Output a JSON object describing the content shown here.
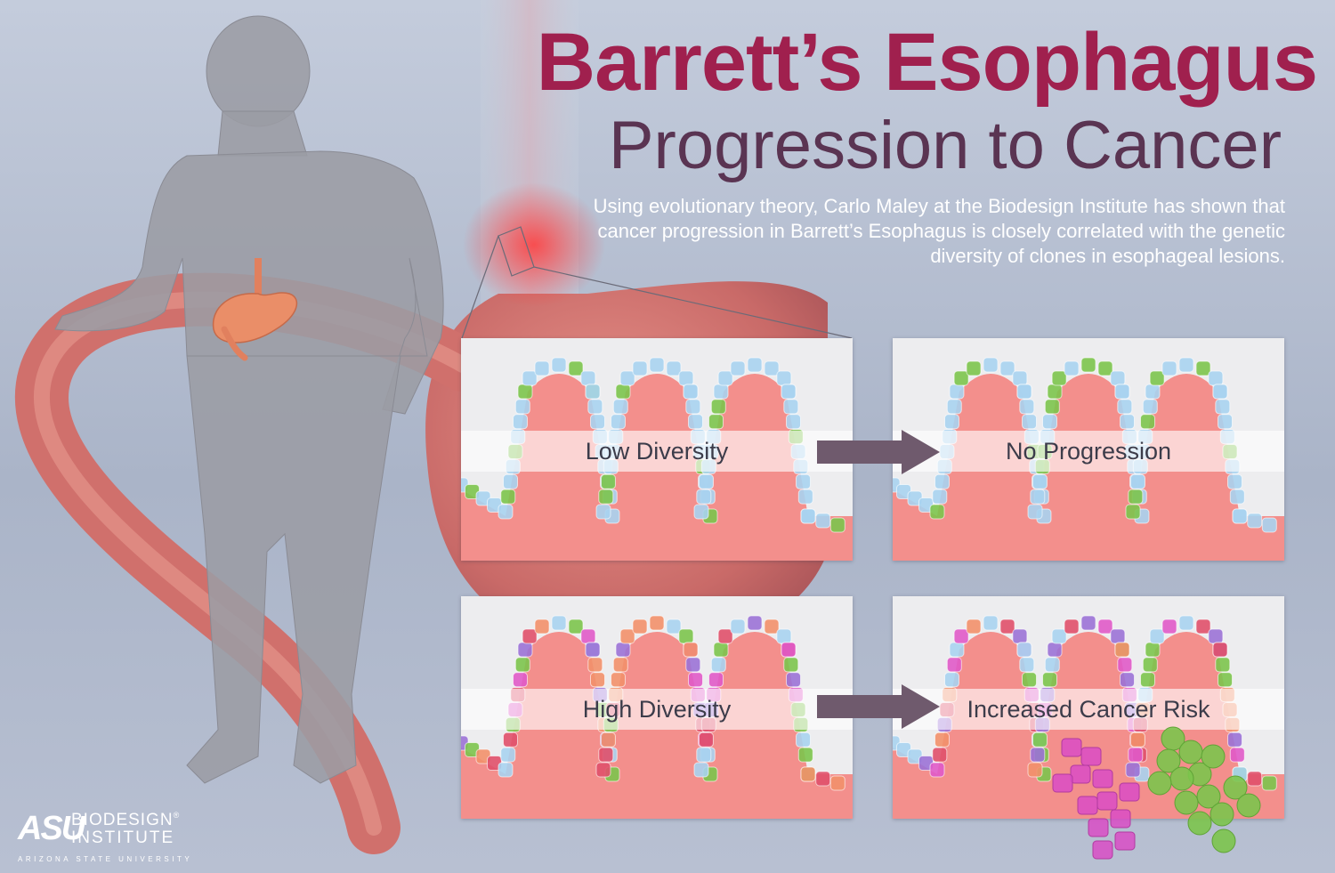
{
  "title": "Barrett’s Esophagus",
  "subtitle": "Progression to Cancer",
  "description": "Using evolutionary theory, Carlo Maley at the Biodesign Institute has shown that cancer progression in Barrett’s Esophagus is closely correlated with the genetic diversity of clones in esophageal lesions.",
  "panels": {
    "low_diversity": "Low Diversity",
    "no_progression": "No Progression",
    "high_diversity": "High Diversity",
    "increased_risk": "Increased Cancer Risk"
  },
  "logo": {
    "asu": "ASU",
    "biodesign": "BIODESIGN",
    "registered": "®",
    "institute": "INSTITUTE",
    "university": "ARIZONA STATE UNIVERSITY"
  },
  "colors": {
    "title": "#a0204e",
    "subtitle": "#5a3452",
    "tissue": "#f38f8c",
    "arrow": "#6f5a6d",
    "low_diversity_cells": [
      "#a9d3ef",
      "#a9d3ef",
      "#7cc44d",
      "#a9d3ef"
    ],
    "high_diversity_cells": [
      "#a9d3ef",
      "#7cc44d",
      "#e05ac8",
      "#9b72d6",
      "#f2906a",
      "#e0506a"
    ]
  },
  "icons": {
    "figure": "human-figure-silhouette",
    "stomach": "stomach-icon",
    "esophagus": "esophagus-stomach-illustration",
    "arrow": "arrow-right-icon"
  }
}
